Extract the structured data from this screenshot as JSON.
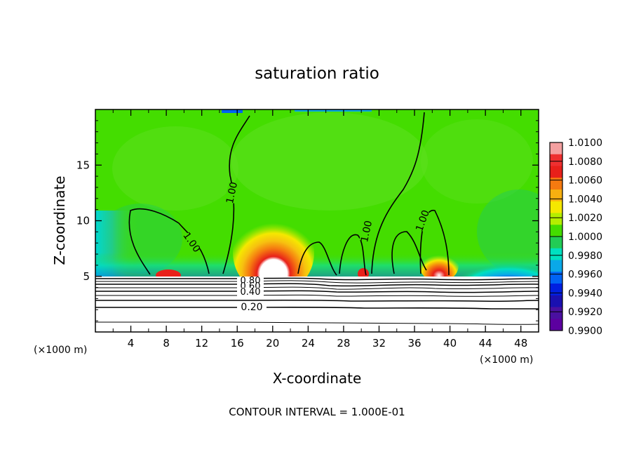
{
  "chart_data": {
    "type": "heatmap",
    "title": "saturation ratio",
    "xlabel": "X-coordinate",
    "ylabel": "Z-coordinate",
    "x_unit": "(×1000 m)",
    "z_unit": "(×1000 m)",
    "xlim": [
      0,
      50
    ],
    "ylim": [
      0,
      20
    ],
    "x_ticks": [
      4,
      8,
      12,
      16,
      20,
      24,
      28,
      32,
      36,
      40,
      44,
      48
    ],
    "y_ticks": [
      5,
      10,
      15
    ],
    "colorbar": {
      "levels": [
        "1.0100",
        "1.0080",
        "1.0060",
        "1.0040",
        "1.0020",
        "1.0000",
        "0.9980",
        "0.9960",
        "0.9940",
        "0.9920",
        "0.9900"
      ],
      "colors": [
        "#f4a0a0",
        "#ee3030",
        "#e8201a",
        "#f57a10",
        "#f7b010",
        "#f5e800",
        "#b4ee00",
        "#44dd00",
        "#22cc55",
        "#00e0c0",
        "#0aa8e8",
        "#0064f5",
        "#0020e0",
        "#1a10b0",
        "#4a10a0",
        "#5c00a0"
      ]
    },
    "contour_labels": [
      "1.00",
      "1.00",
      "1.00",
      "1.00",
      "1.00",
      "0.80",
      "0.60",
      "0.40",
      "0.20"
    ],
    "contour_interval": "CONTOUR INTERVAL = 1.000E-01"
  }
}
